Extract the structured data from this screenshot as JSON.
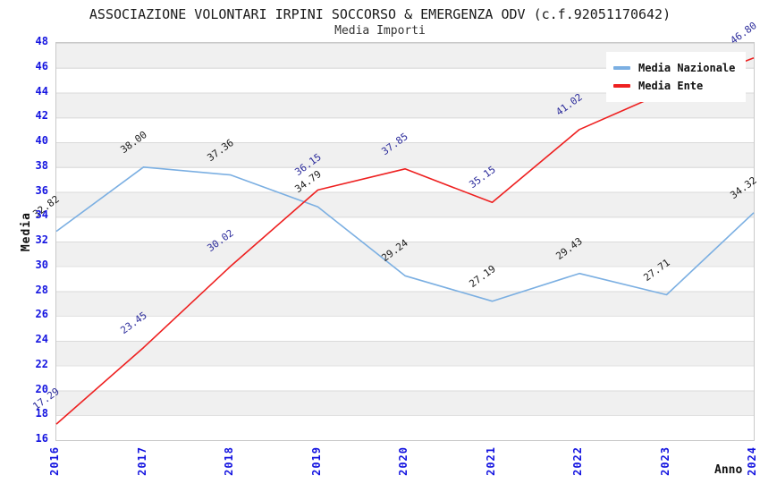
{
  "title": "ASSOCIAZIONE VOLONTARI IRPINI SOCCORSO & EMERGENZA ODV (c.f.92051170642)",
  "subtitle": "Media Importi",
  "colors": {
    "nazionale_line": "#7bafe2",
    "ente_line": "#ee2020",
    "axis_tick_text": "#1414e0",
    "ente_label_text": "#2b2b9b",
    "nazionale_label_text": "#1a1a1a",
    "band_gray": "#f0f0f0",
    "plot_border": "#c9c9c9"
  },
  "chart_data": {
    "type": "line",
    "title": "ASSOCIAZIONE VOLONTARI IRPINI SOCCORSO & EMERGENZA ODV (c.f.92051170642)",
    "subtitle": "Media Importi",
    "xlabel": "Anno",
    "ylabel": "Media",
    "x": [
      2016,
      2017,
      2018,
      2019,
      2020,
      2021,
      2022,
      2023,
      2024
    ],
    "ylim": [
      16,
      48
    ],
    "ytick_step": 2,
    "grid": "horizontal-bands",
    "legend_position": "top-right",
    "series": [
      {
        "name": "Media Nazionale",
        "color": "#7bafe2",
        "label_color": "#1a1a1a",
        "values": [
          32.82,
          38.0,
          37.36,
          34.79,
          29.24,
          27.19,
          29.43,
          27.71,
          34.32
        ],
        "labels": [
          "32.82",
          "38.00",
          "37.36",
          "34.79",
          "29.24",
          "27.19",
          "29.43",
          "27.71",
          "34.32"
        ]
      },
      {
        "name": "Media Ente",
        "color": "#ee2020",
        "label_color": "#2b2b9b",
        "values": [
          17.29,
          23.45,
          30.02,
          36.15,
          37.85,
          35.15,
          41.02,
          44.1,
          46.8
        ],
        "labels": [
          "17.29",
          "23.45",
          "30.02",
          "36.15",
          "37.85",
          "35.15",
          "41.02",
          "",
          "46.80"
        ]
      }
    ]
  }
}
